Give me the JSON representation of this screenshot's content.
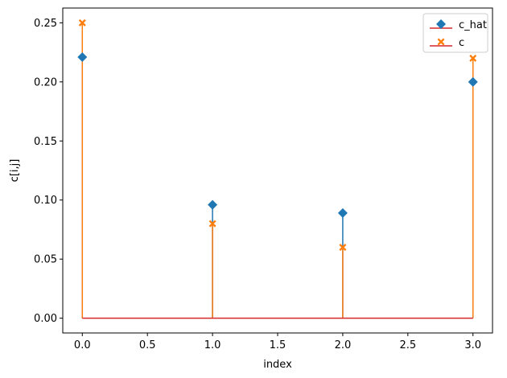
{
  "chart_data": {
    "type": "stem",
    "xlabel": "index",
    "ylabel": "c[i,j]",
    "xlim": [
      -0.15,
      3.15
    ],
    "ylim": [
      -0.0125,
      0.2625
    ],
    "xticks": [
      "0.0",
      "0.5",
      "1.0",
      "1.5",
      "2.0",
      "2.5",
      "3.0"
    ],
    "yticks": [
      "0.00",
      "0.05",
      "0.10",
      "0.15",
      "0.20",
      "0.25"
    ],
    "legend_position": "top-right",
    "baseline_color": "#d62728",
    "series": [
      {
        "name": "c_hat",
        "marker": "diamond",
        "color": "#1f77b4",
        "x": [
          0,
          1,
          2,
          3
        ],
        "values": [
          0.221,
          0.096,
          0.089,
          0.2
        ]
      },
      {
        "name": "c",
        "marker": "x-filled",
        "color": "#ff7f0e",
        "x": [
          0,
          1,
          2,
          3
        ],
        "values": [
          0.25,
          0.08,
          0.06,
          0.22
        ]
      }
    ]
  }
}
